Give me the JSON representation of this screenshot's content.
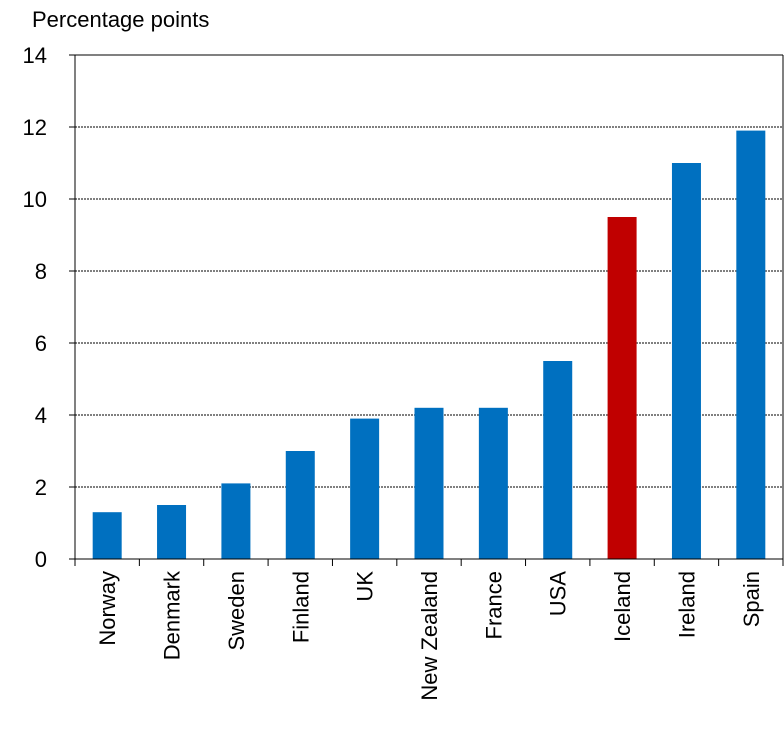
{
  "chart_data": {
    "type": "bar",
    "ylabel": "Percentage points",
    "ylim": [
      0,
      14
    ],
    "yticks": [
      0,
      2,
      4,
      6,
      8,
      10,
      12,
      14
    ],
    "grid": true,
    "categories": [
      "Norway",
      "Denmark",
      "Sweden",
      "Finland",
      "UK",
      "New Zealand",
      "France",
      "USA",
      "Iceland",
      "Ireland",
      "Spain"
    ],
    "values": [
      1.3,
      1.5,
      2.1,
      3.0,
      3.9,
      4.2,
      4.2,
      5.5,
      9.5,
      11.0,
      11.9
    ],
    "colors": {
      "default": "#0070C0",
      "highlight": "#C00000"
    },
    "highlight_category": "Iceland"
  }
}
